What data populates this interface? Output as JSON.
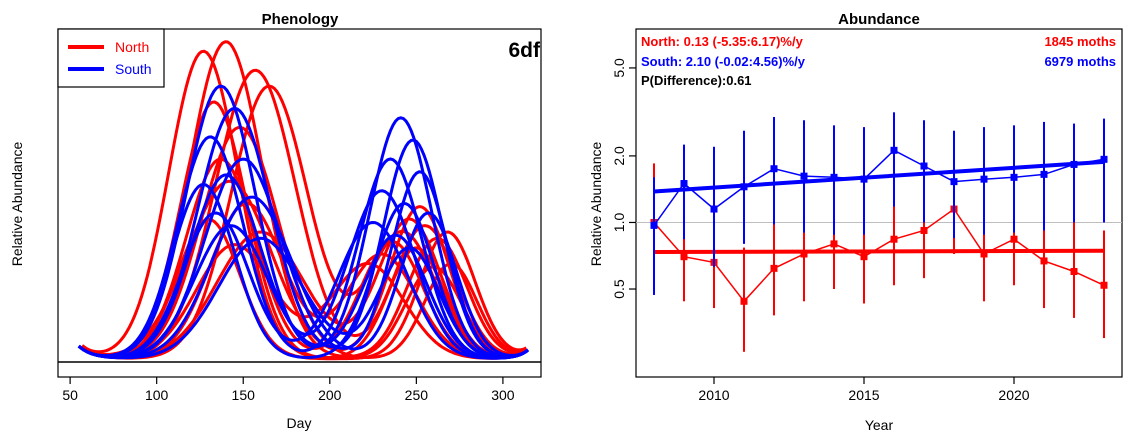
{
  "colors": {
    "north": "#ff0000",
    "south": "#0000ff",
    "axis": "#000000",
    "refline": "#bebebe"
  },
  "chart_data": [
    {
      "type": "line",
      "title": "Phenology",
      "xlabel": "Day",
      "ylabel": "Relative Abundance",
      "annotation": "6df",
      "legend": {
        "position": "top-left",
        "entries": [
          "North",
          "South"
        ]
      },
      "xlim": [
        43,
        322
      ],
      "xticks": [
        50,
        100,
        150,
        200,
        250,
        300
      ],
      "y_ticks_shown": false,
      "ylim": [
        0,
        1.05
      ],
      "grid": false,
      "curve_family": {
        "note": "one fitted curve per year; peak heights on relative 0-1 scale",
        "north": {
          "x_range": [
            57,
            314
          ],
          "curves": [
            {
              "p1": 127,
              "h1": 0.97,
              "w1": 20,
              "p2": 268,
              "h2": 0.4,
              "w2": 16
            },
            {
              "p1": 140,
              "h1": 1.0,
              "w1": 21,
              "p2": 262,
              "h2": 0.38,
              "w2": 17
            },
            {
              "p1": 157,
              "h1": 0.91,
              "w1": 23,
              "p2": 255,
              "h2": 0.42,
              "w2": 18
            },
            {
              "p1": 165,
              "h1": 0.86,
              "w1": 22,
              "p2": 242,
              "h2": 0.4,
              "w2": 19
            },
            {
              "p1": 133,
              "h1": 0.81,
              "w1": 19,
              "p2": 250,
              "h2": 0.35,
              "w2": 16
            },
            {
              "p1": 148,
              "h1": 0.73,
              "w1": 22,
              "p2": 270,
              "h2": 0.3,
              "w2": 15
            },
            {
              "p1": 137,
              "h1": 0.63,
              "w1": 20,
              "p2": 236,
              "h2": 0.37,
              "w2": 18
            },
            {
              "p1": 142,
              "h1": 0.56,
              "w1": 24,
              "p2": 252,
              "h2": 0.48,
              "w2": 17
            },
            {
              "p1": 152,
              "h1": 0.49,
              "w1": 21,
              "p2": 230,
              "h2": 0.33,
              "w2": 20
            },
            {
              "p1": 130,
              "h1": 0.44,
              "w1": 18,
              "p2": 260,
              "h2": 0.29,
              "w2": 16
            },
            {
              "p1": 160,
              "h1": 0.4,
              "w1": 25,
              "p2": 246,
              "h2": 0.44,
              "w2": 18
            },
            {
              "p1": 145,
              "h1": 0.36,
              "w1": 22,
              "p2": 222,
              "h2": 0.3,
              "w2": 21
            }
          ]
        },
        "south": {
          "x_range": [
            55,
            315
          ],
          "curves": [
            {
              "p1": 137,
              "h1": 0.86,
              "w1": 20,
              "p2": 241,
              "h2": 0.76,
              "w2": 18
            },
            {
              "p1": 145,
              "h1": 0.79,
              "w1": 21,
              "p2": 248,
              "h2": 0.69,
              "w2": 17
            },
            {
              "p1": 131,
              "h1": 0.7,
              "w1": 19,
              "p2": 235,
              "h2": 0.63,
              "w2": 18
            },
            {
              "p1": 150,
              "h1": 0.63,
              "w1": 22,
              "p2": 252,
              "h2": 0.59,
              "w2": 16
            },
            {
              "p1": 140,
              "h1": 0.58,
              "w1": 20,
              "p2": 230,
              "h2": 0.53,
              "w2": 19
            },
            {
              "p1": 127,
              "h1": 0.55,
              "w1": 18,
              "p2": 243,
              "h2": 0.49,
              "w2": 17
            },
            {
              "p1": 155,
              "h1": 0.51,
              "w1": 23,
              "p2": 257,
              "h2": 0.46,
              "w2": 16
            },
            {
              "p1": 134,
              "h1": 0.46,
              "w1": 19,
              "p2": 225,
              "h2": 0.43,
              "w2": 20
            },
            {
              "p1": 143,
              "h1": 0.42,
              "w1": 21,
              "p2": 238,
              "h2": 0.39,
              "w2": 18
            },
            {
              "p1": 160,
              "h1": 0.38,
              "w1": 24,
              "p2": 246,
              "h2": 0.35,
              "w2": 17
            }
          ]
        }
      }
    },
    {
      "type": "line",
      "title": "Abundance",
      "xlabel": "Year",
      "ylabel": "Relative Abundance",
      "y_scale": "log",
      "ylim": [
        0.2,
        7.5
      ],
      "xlim": [
        2007.4,
        2023.6
      ],
      "xticks": [
        2010,
        2015,
        2020
      ],
      "yticks": [
        0.5,
        1.0,
        2.0,
        5.0
      ],
      "ytick_labels": [
        "0.5",
        "1.0",
        "2.0",
        "5.0"
      ],
      "reference_line_y": 1.0,
      "grid": false,
      "annotations": {
        "north": "North: 0.13 (-5.35:6.17)%/y",
        "south": "South: 2.10 (-0.02:4.56)%/y",
        "pdiff": "P(Difference):0.61",
        "north_count": "1845 moths",
        "south_count": "6979 moths"
      },
      "series": [
        {
          "name": "North",
          "color_key": "north",
          "x": [
            2008,
            2009,
            2010,
            2011,
            2012,
            2013,
            2014,
            2015,
            2016,
            2017,
            2018,
            2019,
            2020,
            2021,
            2022,
            2023
          ],
          "y": [
            1.0,
            0.7,
            0.66,
            0.44,
            0.62,
            0.72,
            0.8,
            0.7,
            0.84,
            0.92,
            1.15,
            0.72,
            0.84,
            0.67,
            0.6,
            0.52
          ],
          "ci_low": [
            0.55,
            0.44,
            0.41,
            0.26,
            0.38,
            0.44,
            0.5,
            0.43,
            0.52,
            0.56,
            0.72,
            0.44,
            0.52,
            0.41,
            0.37,
            0.3
          ],
          "ci_high": [
            1.85,
            1.13,
            1.07,
            0.77,
            1.0,
            1.2,
            1.3,
            1.13,
            1.38,
            1.55,
            1.85,
            1.18,
            1.38,
            1.1,
            1.0,
            0.92
          ],
          "trend": [
            0.735,
            0.745
          ]
        },
        {
          "name": "South",
          "color_key": "south",
          "x": [
            2008,
            2009,
            2010,
            2011,
            2012,
            2013,
            2014,
            2015,
            2016,
            2017,
            2018,
            2019,
            2020,
            2021,
            2022,
            2023
          ],
          "y": [
            0.97,
            1.5,
            1.15,
            1.45,
            1.75,
            1.62,
            1.6,
            1.57,
            2.12,
            1.8,
            1.53,
            1.57,
            1.6,
            1.65,
            1.83,
            1.93
          ],
          "ci_low": [
            0.47,
            0.84,
            0.63,
            0.8,
            0.98,
            0.9,
            0.88,
            0.88,
            1.18,
            1.0,
            0.85,
            0.88,
            0.9,
            0.92,
            1.0,
            1.0
          ],
          "ci_high": [
            1.6,
            2.25,
            2.2,
            2.6,
            3.0,
            2.9,
            2.75,
            2.7,
            3.15,
            2.9,
            2.6,
            2.7,
            2.75,
            2.85,
            2.8,
            2.95
          ],
          "trend": [
            1.38,
            1.88
          ]
        }
      ]
    }
  ]
}
